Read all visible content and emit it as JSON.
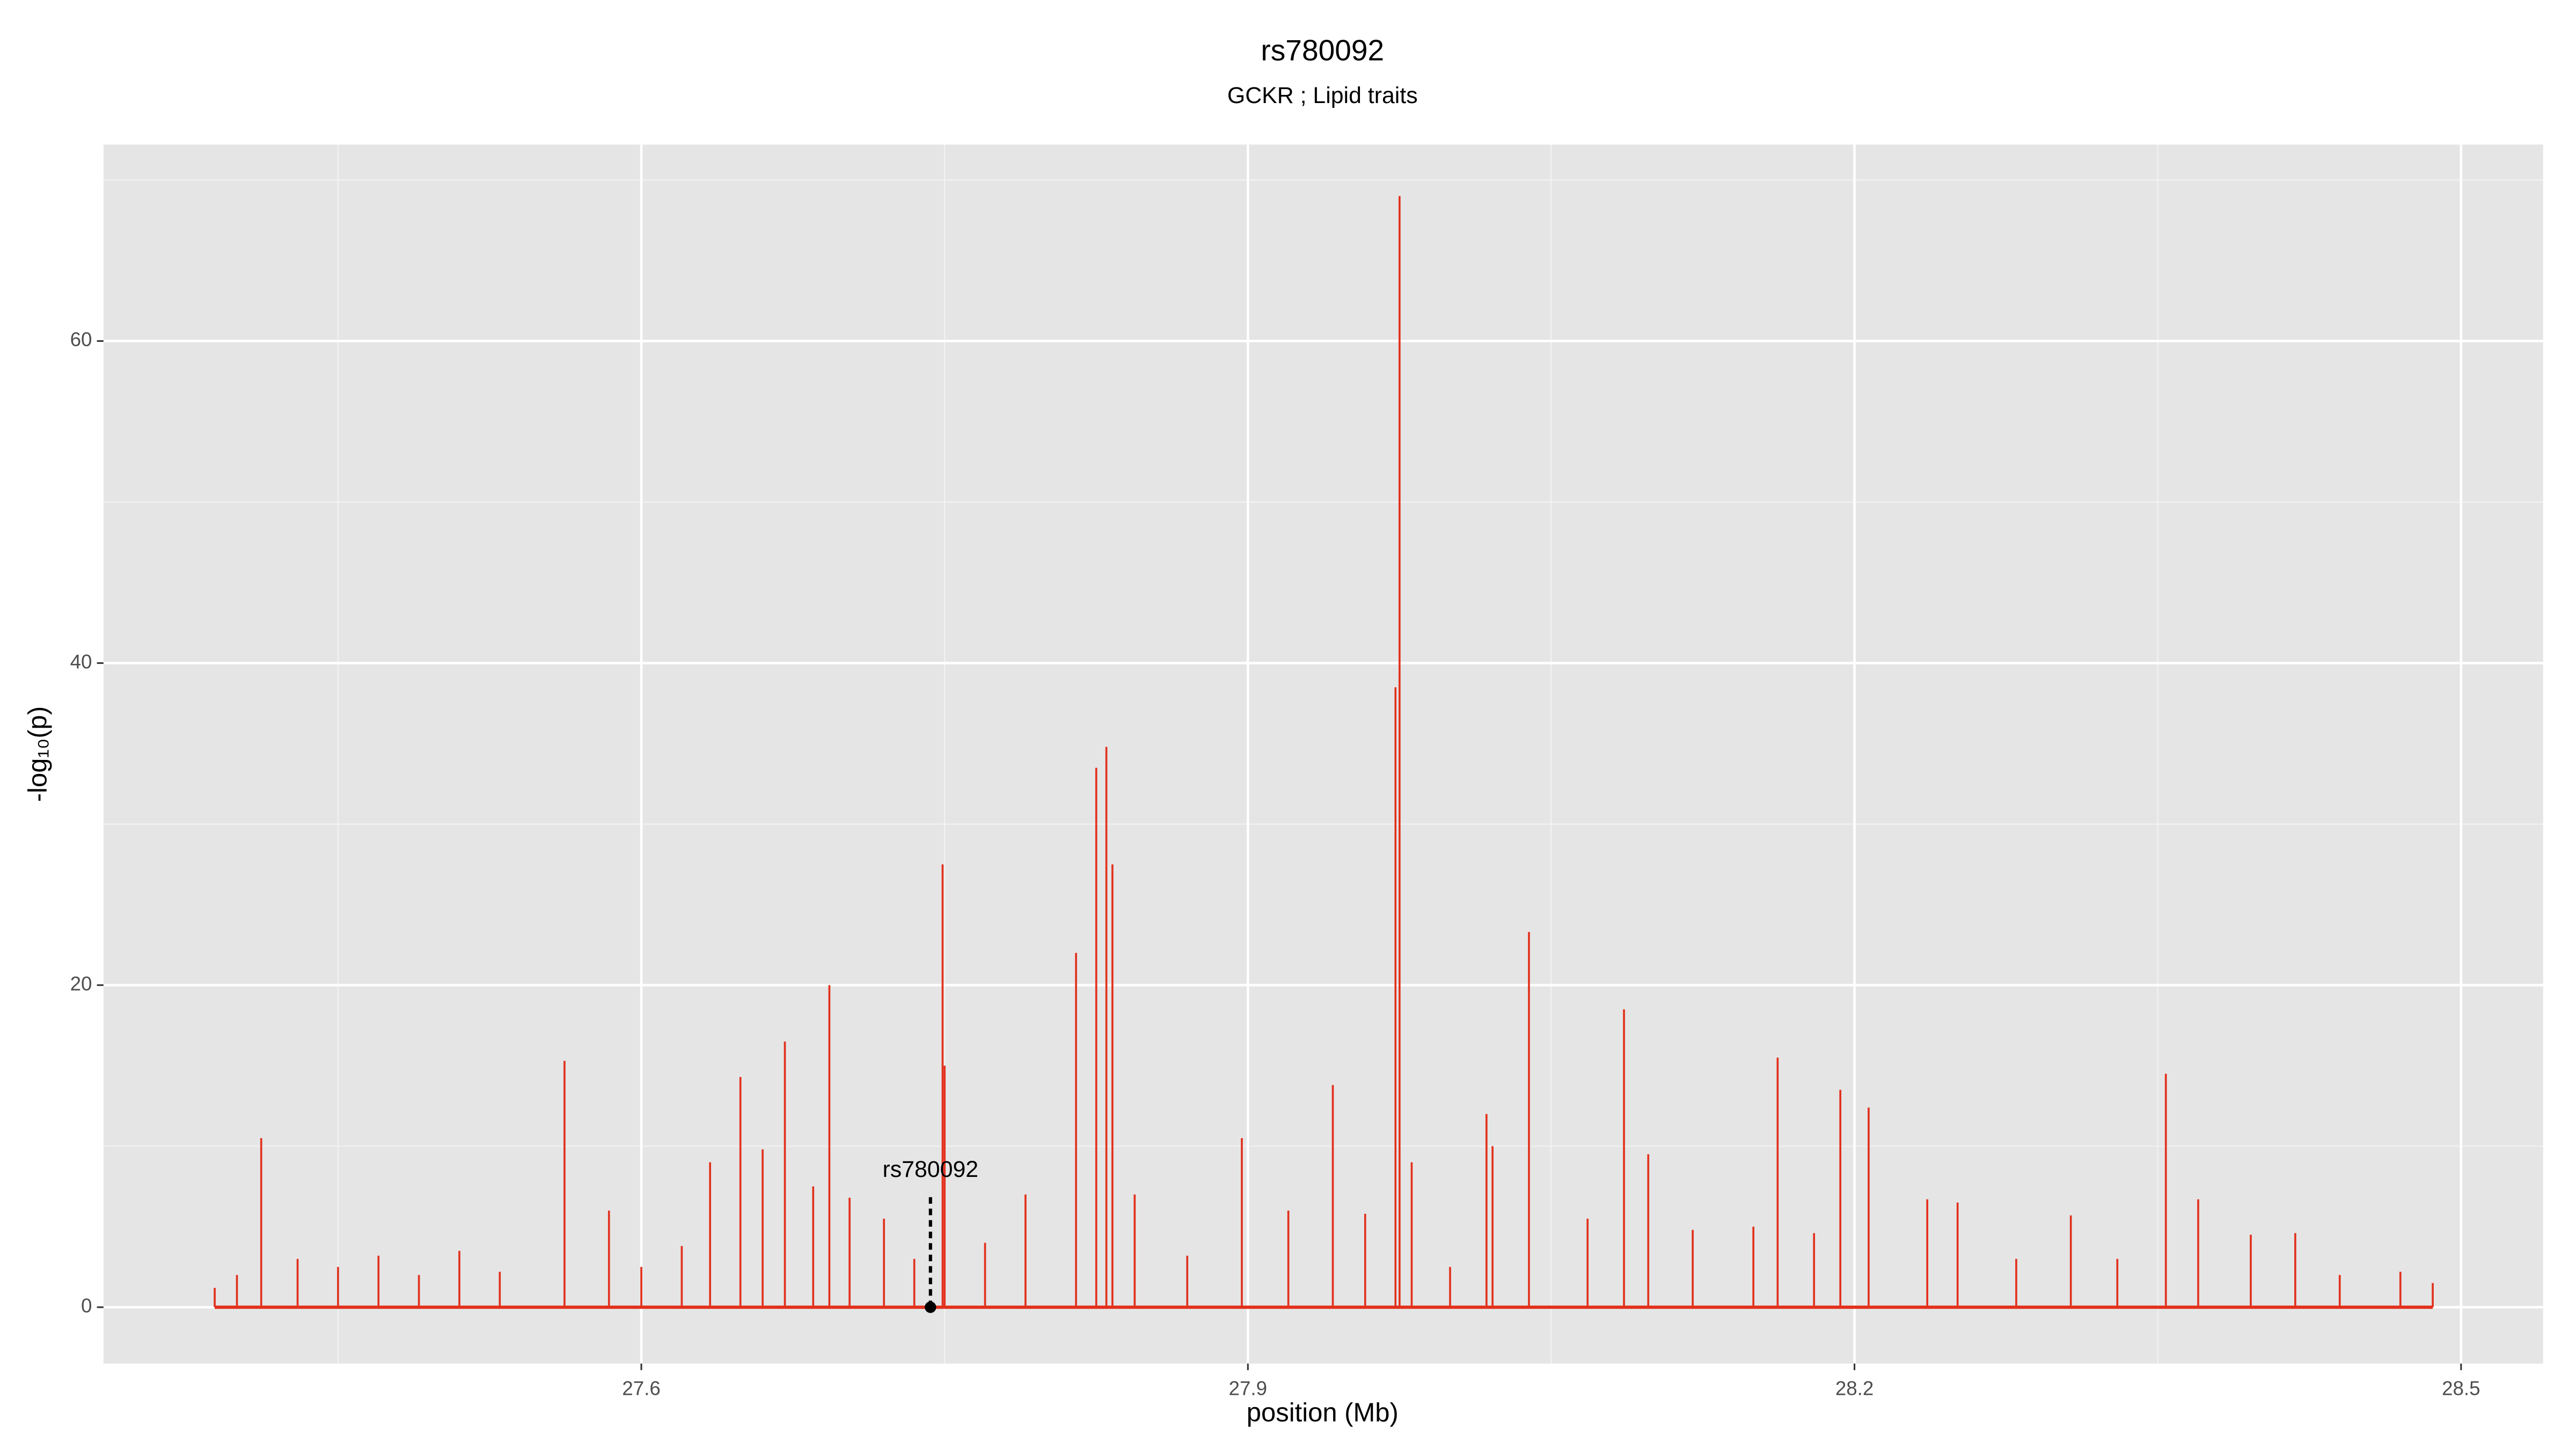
{
  "chart_data": {
    "type": "spike",
    "title": "rs780092",
    "subtitle": "GCKR ; Lipid traits",
    "x_label": "position (Mb)",
    "y_label": "-log₁₀(p)",
    "color": "#e2311d",
    "x": [
      27.389,
      27.4,
      27.412,
      27.43,
      27.45,
      27.47,
      27.49,
      27.51,
      27.53,
      27.562,
      27.584,
      27.6,
      27.62,
      27.634,
      27.649,
      27.66,
      27.671,
      27.685,
      27.693,
      27.703,
      27.72,
      27.735,
      27.749,
      27.75,
      27.77,
      27.79,
      27.815,
      27.825,
      27.83,
      27.833,
      27.844,
      27.87,
      27.897,
      27.92,
      27.942,
      27.958,
      27.973,
      27.975,
      27.981,
      28.0,
      28.018,
      28.021,
      28.039,
      28.068,
      28.086,
      28.098,
      28.12,
      28.15,
      28.162,
      28.18,
      28.193,
      28.207,
      28.236,
      28.251,
      28.28,
      28.307,
      28.33,
      28.354,
      28.37,
      28.396,
      28.418,
      28.44,
      28.47,
      28.486
    ],
    "values": [
      1.2,
      2.0,
      10.5,
      3.0,
      2.5,
      3.2,
      2.0,
      3.5,
      2.2,
      15.3,
      6.0,
      2.5,
      3.8,
      9.0,
      14.3,
      9.8,
      16.5,
      7.5,
      20.0,
      6.8,
      5.5,
      3.0,
      27.5,
      15.0,
      4.0,
      7.0,
      22.0,
      33.5,
      34.8,
      27.5,
      7.0,
      3.2,
      10.5,
      6.0,
      13.8,
      5.8,
      38.5,
      69.0,
      9.0,
      2.5,
      12.0,
      10.0,
      23.3,
      5.5,
      18.5,
      9.5,
      4.8,
      5.0,
      15.5,
      4.6,
      13.5,
      12.4,
      6.7,
      6.5,
      3.0,
      5.7,
      3.0,
      14.5,
      6.7,
      4.5,
      4.6,
      2.0,
      2.2,
      1.5
    ],
    "annotation": {
      "label": "rs780092",
      "x": 27.743,
      "y": 0
    },
    "xlim": [
      27.334,
      28.5406
    ],
    "ylim": [
      -3.5,
      72.2
    ],
    "xticks": [
      27.6,
      27.9,
      28.2,
      28.5
    ],
    "yticks": [
      0,
      20,
      40,
      60
    ],
    "grid": true
  }
}
